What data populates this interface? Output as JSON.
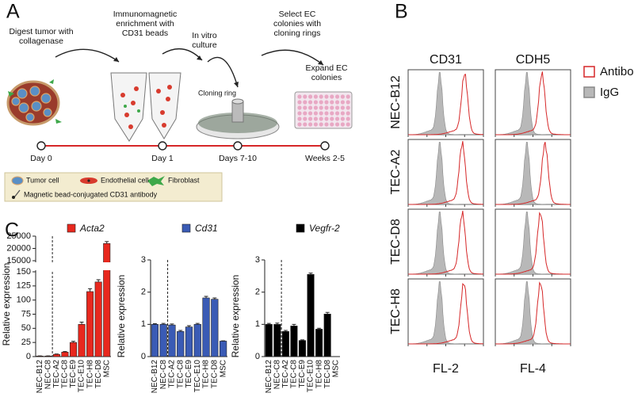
{
  "panels": [
    "A",
    "B",
    "C"
  ],
  "workflow": {
    "steps": [
      [
        "Digest tumor with",
        "collagenase"
      ],
      [
        "Immunomagnetic",
        "enrichment with",
        "CD31 beads"
      ],
      [
        "In vitro",
        "culture"
      ],
      [
        "Select EC",
        "colonies with",
        "cloning rings"
      ],
      [
        "Expand EC",
        "colonies"
      ]
    ],
    "cloning_ring": "Cloning ring",
    "timeline": [
      "Day 0",
      "Day 1",
      "Days 7-10",
      "Weeks 2-5"
    ],
    "legend": [
      "Tumor cell",
      "Endothelial cell",
      "Fibroblast",
      "Magnetic bead-conjugated CD31 antibody"
    ]
  },
  "flow": {
    "columns": [
      "CD31",
      "CDH5"
    ],
    "rows": [
      "NEC-B12",
      "TEC-A2",
      "TEC-D8",
      "TEC-H8"
    ],
    "x_labels": [
      "FL-2",
      "FL-4"
    ],
    "legend": [
      {
        "name": "Antibody",
        "color": "#d62728"
      },
      {
        "name": "IgG",
        "color": "#b8b8b8"
      }
    ]
  },
  "chart_data": [
    {
      "type": "bar",
      "ylabel": "Relative expression",
      "categories": [
        "NEC-B12",
        "NEC-C8",
        "TEC-A2",
        "TEC-C8",
        "TEC-E9",
        "TEC-E10",
        "TEC-H8",
        "TEC-D8",
        "MSC"
      ],
      "series": [
        {
          "name": "Acta2",
          "color": "#e8281e",
          "values": [
            1,
            1,
            4,
            8,
            25,
            57,
            115,
            132,
            22000
          ],
          "errors": [
            0.2,
            0.2,
            0.5,
            1,
            2,
            4,
            5,
            4,
            800
          ]
        }
      ],
      "ylim": [
        0,
        25000
      ],
      "ybreak": [
        150,
        15000
      ],
      "yticks": [
        0,
        25,
        50,
        75,
        100,
        125,
        150,
        15000,
        20000,
        25000
      ]
    },
    {
      "type": "bar",
      "ylabel": "Relative expression",
      "categories": [
        "NEC-B12",
        "NEC-C8",
        "TEC-A2",
        "TEC-C8",
        "TEC-E9",
        "TEC-E10",
        "TEC-H8",
        "TEC-D8",
        "MSC"
      ],
      "series": [
        {
          "name": "Cd31",
          "color": "#3a5bb5",
          "values": [
            1.0,
            1.0,
            0.98,
            0.78,
            0.92,
            1.0,
            1.82,
            1.78,
            0.48
          ],
          "errors": [
            0.02,
            0.03,
            0.03,
            0.03,
            0.04,
            0.03,
            0.05,
            0.04,
            0.01
          ]
        }
      ],
      "ylim": [
        0,
        3
      ],
      "yticks": [
        0,
        1,
        2,
        3
      ]
    },
    {
      "type": "bar",
      "ylabel": "Relative expression",
      "categories": [
        "NEC-B12",
        "NEC-C8",
        "TEC-A2",
        "TEC-C8",
        "TEC-E9",
        "TEC-E10",
        "TEC-H8",
        "TEC-D8",
        "MSC"
      ],
      "series": [
        {
          "name": "Vegfr-2",
          "color": "#000000",
          "values": [
            1.0,
            1.0,
            0.78,
            0.95,
            0.5,
            2.55,
            0.85,
            1.32,
            null
          ],
          "errors": [
            0.03,
            0.04,
            0.03,
            0.05,
            0.02,
            0.04,
            0.03,
            0.05,
            null
          ]
        }
      ],
      "ylim": [
        0,
        3
      ],
      "yticks": [
        0,
        1,
        2,
        3
      ]
    }
  ]
}
